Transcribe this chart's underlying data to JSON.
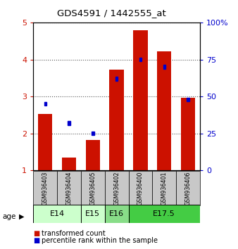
{
  "title": "GDS4591 / 1442555_at",
  "samples": [
    "GSM936403",
    "GSM936404",
    "GSM936405",
    "GSM936402",
    "GSM936400",
    "GSM936401",
    "GSM936406"
  ],
  "transformed_counts": [
    2.52,
    1.35,
    1.82,
    3.72,
    4.78,
    4.21,
    2.97
  ],
  "percentile_ranks": [
    45,
    32,
    25,
    62,
    75,
    70,
    48
  ],
  "ylim_left": [
    1,
    5
  ],
  "ylim_right": [
    0,
    100
  ],
  "yticks_left": [
    1,
    2,
    3,
    4,
    5
  ],
  "yticks_right": [
    0,
    25,
    50,
    75,
    100
  ],
  "bar_color": "#cc1100",
  "percentile_color": "#0000cc",
  "groups": [
    {
      "label": "E14",
      "samples": [
        "GSM936403",
        "GSM936404"
      ],
      "color": "#ccffcc"
    },
    {
      "label": "E15",
      "samples": [
        "GSM936405"
      ],
      "color": "#ccffcc"
    },
    {
      "label": "E16",
      "samples": [
        "GSM936402"
      ],
      "color": "#88dd88"
    },
    {
      "label": "E17.5",
      "samples": [
        "GSM936400",
        "GSM936401",
        "GSM936406"
      ],
      "color": "#44cc44"
    }
  ],
  "age_label": "age",
  "legend_red": "transformed count",
  "legend_blue": "percentile rank within the sample",
  "bar_width": 0.6,
  "sample_bg_color": "#c8c8c8",
  "left_tick_color": "#cc1100",
  "right_tick_color": "#0000cc",
  "pct_sq_size": 0.1
}
